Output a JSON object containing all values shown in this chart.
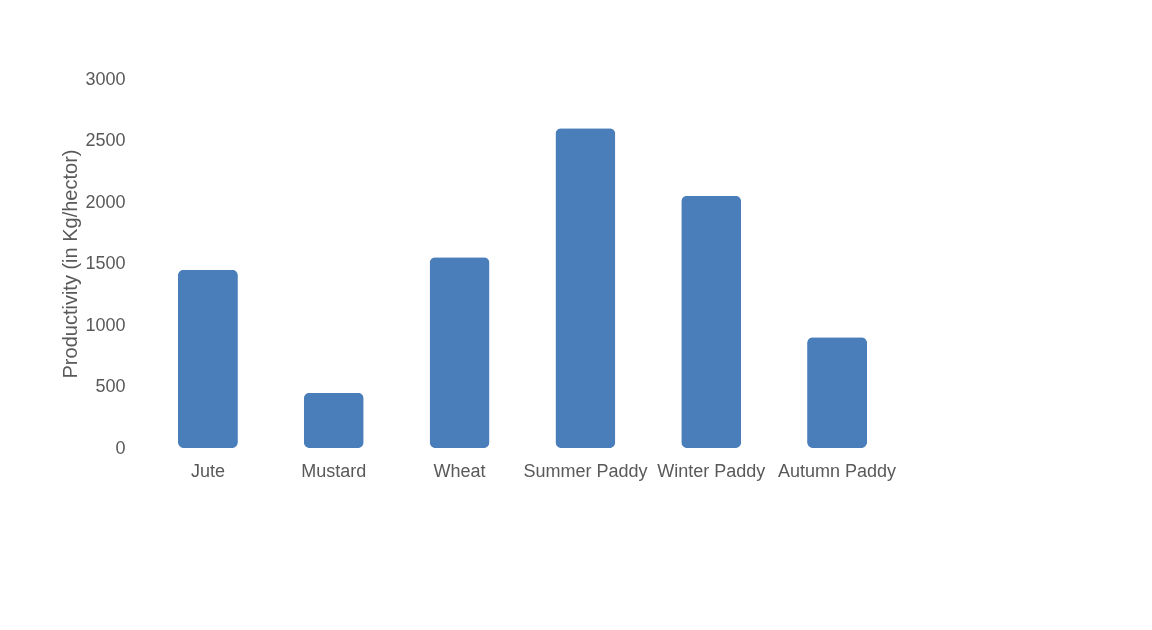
{
  "chart_data": {
    "type": "bar",
    "ylabel": "Productivity (in Kg/hector)",
    "categories": [
      "Jute",
      "Mustard",
      "Wheat",
      "Summer Paddy",
      "Winter Paddy",
      "Autumn Paddy"
    ],
    "values": [
      1450,
      450,
      1550,
      2600,
      2050,
      900
    ],
    "color": "#4a7ebb",
    "ylim": [
      0,
      3000
    ],
    "yticks": [
      0,
      500,
      1000,
      1500,
      2000,
      2500,
      3000
    ],
    "grid": false
  }
}
